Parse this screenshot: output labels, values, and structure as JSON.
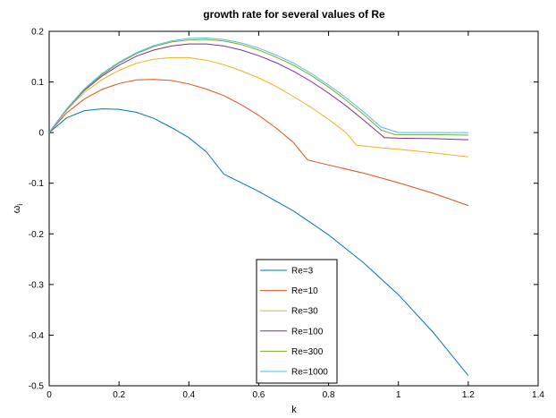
{
  "chart_data": {
    "type": "line",
    "title": "growth rate for several values of Re",
    "xlabel": "k",
    "ylabel": "ω",
    "ylabel_subscript": "i",
    "xlim": [
      0,
      1.4
    ],
    "ylim": [
      -0.5,
      0.2
    ],
    "xticks": [
      0,
      0.2,
      0.4,
      0.6,
      0.8,
      1,
      1.2,
      1.4
    ],
    "xtick_labels": [
      "0",
      "0.2",
      "0.4",
      "0.6",
      "0.8",
      "1",
      "1.2",
      "1.4"
    ],
    "yticks": [
      -0.5,
      -0.4,
      -0.3,
      -0.2,
      -0.1,
      0,
      0.1,
      0.2
    ],
    "ytick_labels": [
      "-0.5",
      "-0.4",
      "-0.3",
      "-0.2",
      "-0.1",
      "0",
      "0.1",
      "0.2"
    ],
    "grid": false,
    "legend_position": "bottom-center",
    "series": [
      {
        "name": "Re=3",
        "color": "#0072BD",
        "x": [
          0,
          0.05,
          0.1,
          0.15,
          0.2,
          0.25,
          0.3,
          0.35,
          0.4,
          0.45,
          0.5,
          0.6,
          0.7,
          0.8,
          0.9,
          1.0,
          1.1,
          1.2
        ],
        "y": [
          0,
          0.029,
          0.043,
          0.047,
          0.046,
          0.04,
          0.028,
          0.01,
          -0.01,
          -0.038,
          -0.082,
          -0.116,
          -0.155,
          -0.202,
          -0.257,
          -0.32,
          -0.395,
          -0.48
        ]
      },
      {
        "name": "Re=10",
        "color": "#D95319",
        "x": [
          0,
          0.05,
          0.1,
          0.15,
          0.2,
          0.25,
          0.3,
          0.35,
          0.4,
          0.45,
          0.5,
          0.55,
          0.6,
          0.65,
          0.7,
          0.74,
          0.8,
          0.9,
          1.0,
          1.1,
          1.2
        ],
        "y": [
          0,
          0.039,
          0.066,
          0.085,
          0.097,
          0.104,
          0.105,
          0.103,
          0.096,
          0.086,
          0.073,
          0.055,
          0.034,
          0.009,
          -0.02,
          -0.054,
          -0.064,
          -0.08,
          -0.099,
          -0.12,
          -0.144
        ]
      },
      {
        "name": "Re=30",
        "color": "#EDB120",
        "x": [
          0,
          0.05,
          0.1,
          0.15,
          0.2,
          0.25,
          0.3,
          0.35,
          0.4,
          0.45,
          0.5,
          0.55,
          0.6,
          0.65,
          0.7,
          0.75,
          0.8,
          0.85,
          0.88,
          0.95,
          1.0,
          1.1,
          1.2
        ],
        "y": [
          0,
          0.044,
          0.079,
          0.104,
          0.123,
          0.137,
          0.145,
          0.148,
          0.148,
          0.143,
          0.134,
          0.122,
          0.108,
          0.091,
          0.071,
          0.05,
          0.026,
          0.0,
          -0.025,
          -0.03,
          -0.033,
          -0.04,
          -0.048
        ]
      },
      {
        "name": "Re=100",
        "color": "#7E2F8E",
        "x": [
          0,
          0.05,
          0.1,
          0.15,
          0.2,
          0.25,
          0.3,
          0.35,
          0.4,
          0.45,
          0.5,
          0.55,
          0.6,
          0.65,
          0.7,
          0.75,
          0.8,
          0.85,
          0.9,
          0.96,
          1.0,
          1.1,
          1.2
        ],
        "y": [
          0,
          0.046,
          0.083,
          0.111,
          0.133,
          0.151,
          0.163,
          0.171,
          0.175,
          0.175,
          0.171,
          0.163,
          0.152,
          0.138,
          0.121,
          0.101,
          0.078,
          0.053,
          0.025,
          -0.01,
          -0.011,
          -0.012,
          -0.014
        ]
      },
      {
        "name": "Re=300",
        "color": "#77AC30",
        "x": [
          0,
          0.05,
          0.1,
          0.15,
          0.2,
          0.25,
          0.3,
          0.35,
          0.4,
          0.45,
          0.5,
          0.55,
          0.6,
          0.65,
          0.7,
          0.75,
          0.8,
          0.85,
          0.9,
          0.95,
          0.99,
          1.05,
          1.1,
          1.2
        ],
        "y": [
          0,
          0.046,
          0.085,
          0.114,
          0.137,
          0.156,
          0.17,
          0.179,
          0.183,
          0.184,
          0.181,
          0.174,
          0.163,
          0.149,
          0.133,
          0.113,
          0.09,
          0.064,
          0.036,
          0.005,
          -0.004,
          -0.004,
          -0.004,
          -0.005
        ]
      },
      {
        "name": "Re=1000",
        "color": "#4DBEEE",
        "x": [
          0,
          0.05,
          0.1,
          0.15,
          0.2,
          0.25,
          0.3,
          0.35,
          0.4,
          0.45,
          0.5,
          0.55,
          0.6,
          0.65,
          0.7,
          0.75,
          0.8,
          0.85,
          0.9,
          0.95,
          1.0,
          1.05,
          1.1,
          1.2
        ],
        "y": [
          0,
          0.047,
          0.086,
          0.116,
          0.139,
          0.158,
          0.172,
          0.181,
          0.186,
          0.187,
          0.184,
          0.177,
          0.167,
          0.153,
          0.137,
          0.117,
          0.094,
          0.069,
          0.041,
          0.011,
          0.0,
          0.0,
          0.0,
          0.0
        ]
      }
    ]
  }
}
